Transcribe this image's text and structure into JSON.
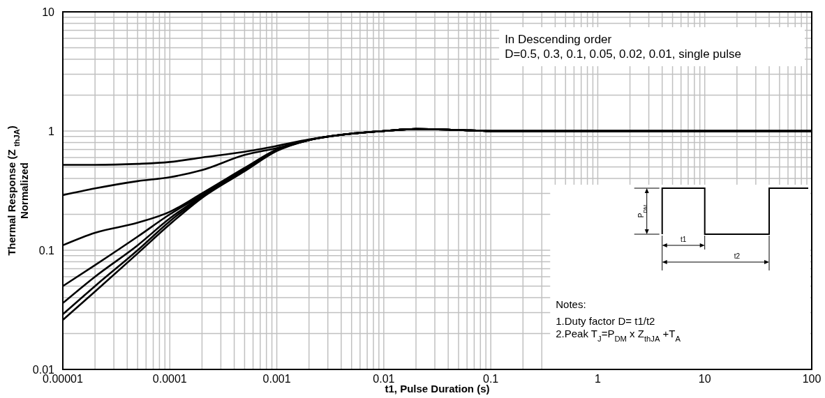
{
  "chart_data": {
    "type": "line",
    "xlabel": "t1, Pulse Duration (s)",
    "ylabel": "Thermal Response (Z $_{thJA}$)\nNormalized",
    "log": "xy",
    "grid": true,
    "marker": "none",
    "line_style": "solid",
    "xlim": [
      1e-05,
      100
    ],
    "xticks": [
      {
        "value": 1e-05,
        "label": "0.00001"
      },
      0.0001,
      0.001,
      0.01,
      0.1,
      1,
      10,
      100
    ],
    "ylim": [
      0.01,
      10
    ],
    "yticks": [
      0.01,
      0.1,
      1,
      10
    ],
    "x": [
      1e-05,
      2e-05,
      5e-05,
      0.0001,
      0.0002,
      0.0005,
      0.001,
      0.002,
      0.005,
      0.01,
      0.02,
      0.05,
      0.1,
      1,
      10,
      100
    ],
    "series": [
      {
        "color": "#000000",
        "values": [
          0.52,
          0.52,
          0.53,
          0.55,
          0.6,
          0.67,
          0.75,
          0.85,
          0.95,
          1.0,
          1.04,
          1.02,
          1.0,
          1.0,
          1.0,
          1.0
        ]
      },
      {
        "color": "#000000",
        "values": [
          0.29,
          0.33,
          0.38,
          0.41,
          0.47,
          0.63,
          0.72,
          0.84,
          0.95,
          1.0,
          1.04,
          1.02,
          1.0,
          1.0,
          1.0,
          1.0
        ]
      },
      {
        "color": "#000000",
        "values": [
          0.11,
          0.14,
          0.17,
          0.21,
          0.3,
          0.49,
          0.7,
          0.84,
          0.95,
          1.0,
          1.04,
          1.02,
          1.0,
          1.0,
          1.0,
          1.0
        ]
      },
      {
        "color": "#000000",
        "values": [
          0.05,
          0.075,
          0.13,
          0.2,
          0.29,
          0.48,
          0.7,
          0.84,
          0.95,
          1.0,
          1.04,
          1.02,
          1.0,
          1.0,
          1.0,
          1.0
        ]
      },
      {
        "color": "#000000",
        "values": [
          0.036,
          0.06,
          0.11,
          0.185,
          0.285,
          0.47,
          0.69,
          0.84,
          0.95,
          1.0,
          1.04,
          1.02,
          1.0,
          1.0,
          1.0,
          1.0
        ]
      },
      {
        "color": "#000000",
        "values": [
          0.029,
          0.05,
          0.1,
          0.175,
          0.28,
          0.465,
          0.69,
          0.84,
          0.95,
          1.0,
          1.04,
          1.02,
          1.0,
          1.0,
          1.0,
          1.0
        ]
      },
      {
        "color": "#000000",
        "values": [
          0.026,
          0.045,
          0.094,
          0.165,
          0.275,
          0.46,
          0.68,
          0.84,
          0.95,
          1.0,
          1.04,
          1.02,
          1.0,
          1.0,
          1.0,
          1.0
        ]
      }
    ],
    "annotations": [
      "In Descending order\nD=0.5, 0.3, 0.1, 0.05, 0.02, 0.01, single pulse",
      "P$_{DM}$",
      "t1",
      "t2",
      "Notes:\n1.Duty factor D= t1/t2\n2.Peak T$_{J}$=P$_{DM}$ x Z$_{thJA}$ +T$_{A}$"
    ]
  }
}
